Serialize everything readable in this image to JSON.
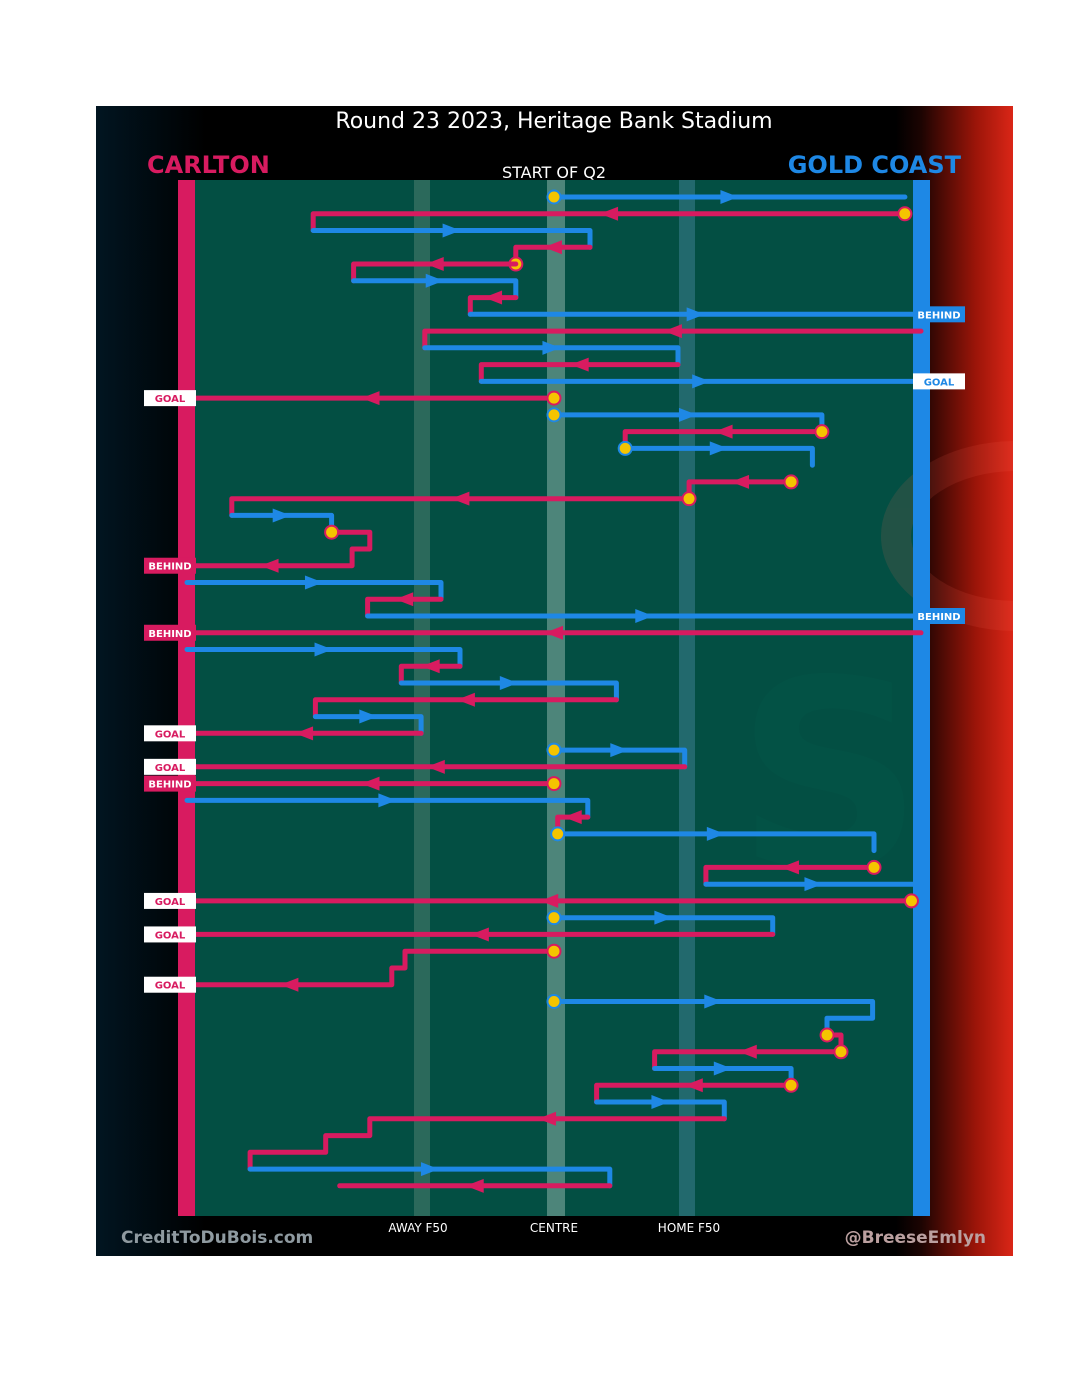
{
  "title": "Round 23 2023, Heritage Bank Stadium",
  "subtitle": "START OF Q2",
  "teams": {
    "away": {
      "name": "CARLTON",
      "color": "#d81b60"
    },
    "home": {
      "name": "GOLD COAST",
      "color": "#1e88e5"
    }
  },
  "x_axis_labels": {
    "away_f50": "AWAY F50",
    "centre": "CENTRE",
    "home_f50": "HOME F50"
  },
  "credits": {
    "left": "CreditToDuBois.com",
    "right": "@BreeseEmlyn"
  },
  "colors": {
    "field": "#034f43",
    "carlton": "#d81b60",
    "goldcoast": "#1e88e5",
    "contest_dot": "#f5c400",
    "label_bg": "#ffffff"
  },
  "chart_data": {
    "type": "line",
    "description_axes": "x = field position from Carlton goal (0) to Gold Coast goal (100); y = sequence of possession chains",
    "xlim": [
      0,
      100
    ],
    "markers": [
      {
        "name": "AWAY F50",
        "x": 30.7
      },
      {
        "name": "CENTRE",
        "x": 50
      },
      {
        "name": "HOME F50",
        "x": 68.8
      }
    ],
    "chains": [
      {
        "team": "GOLD COAST",
        "points": [
          [
            50,
            1
          ],
          [
            97.8,
            1
          ]
        ],
        "dot_start": true
      },
      {
        "team": "CARLTON",
        "points": [
          [
            97.8,
            2
          ],
          [
            17.2,
            2
          ],
          [
            17.2,
            3
          ]
        ],
        "dot_start": true
      },
      {
        "team": "GOLD COAST",
        "points": [
          [
            17.2,
            3
          ],
          [
            54.9,
            3
          ],
          [
            54.9,
            4
          ]
        ]
      },
      {
        "team": "CARLTON",
        "points": [
          [
            54.9,
            4
          ],
          [
            44.8,
            4
          ],
          [
            44.8,
            5
          ]
        ],
        "dot_mid": [
          44.8,
          5
        ]
      },
      {
        "team": "CARLTON",
        "points": [
          [
            44.8,
            5
          ],
          [
            22.7,
            5
          ],
          [
            22.7,
            6
          ]
        ]
      },
      {
        "team": "GOLD COAST",
        "points": [
          [
            22.7,
            6
          ],
          [
            44.8,
            6
          ],
          [
            44.8,
            7
          ]
        ]
      },
      {
        "team": "CARLTON",
        "points": [
          [
            44.8,
            7
          ],
          [
            38.6,
            7
          ],
          [
            38.6,
            8
          ]
        ]
      },
      {
        "team": "GOLD COAST",
        "points": [
          [
            38.6,
            8
          ],
          [
            100,
            8
          ]
        ],
        "result": "BEHIND"
      },
      {
        "team": "CARLTON",
        "points": [
          [
            100,
            9
          ],
          [
            32.4,
            9
          ],
          [
            32.4,
            10
          ]
        ]
      },
      {
        "team": "GOLD COAST",
        "points": [
          [
            32.4,
            10
          ],
          [
            66.9,
            10
          ],
          [
            66.9,
            11
          ]
        ]
      },
      {
        "team": "CARLTON",
        "points": [
          [
            66.9,
            11
          ],
          [
            40.1,
            11
          ],
          [
            40.1,
            12
          ]
        ]
      },
      {
        "team": "GOLD COAST",
        "points": [
          [
            40.1,
            12
          ],
          [
            100,
            12
          ]
        ],
        "result": "GOAL"
      },
      {
        "team": "CARLTON",
        "points": [
          [
            50,
            13
          ],
          [
            0,
            13
          ]
        ],
        "result": "GOAL",
        "dot_start": true
      },
      {
        "team": "GOLD COAST",
        "points": [
          [
            50,
            14
          ],
          [
            86.5,
            14
          ],
          [
            86.5,
            15
          ]
        ],
        "dot_start": true
      },
      {
        "team": "CARLTON",
        "points": [
          [
            86.5,
            15
          ],
          [
            59.7,
            15
          ],
          [
            59.7,
            16
          ]
        ],
        "dot_start": true
      },
      {
        "team": "GOLD COAST",
        "points": [
          [
            59.7,
            16
          ],
          [
            85.2,
            16
          ],
          [
            85.2,
            17
          ]
        ],
        "dot_start": true
      },
      {
        "team": "CARLTON",
        "points": [
          [
            82.3,
            18
          ],
          [
            68.4,
            18
          ],
          [
            68.4,
            19
          ]
        ],
        "dot_start": true
      },
      {
        "team": "CARLTON",
        "points": [
          [
            68.4,
            19
          ],
          [
            6.1,
            19
          ],
          [
            6.1,
            20
          ]
        ],
        "dot_start": true
      },
      {
        "team": "GOLD COAST",
        "points": [
          [
            6.1,
            20
          ],
          [
            19.7,
            20
          ],
          [
            19.7,
            21
          ]
        ]
      },
      {
        "team": "CARLTON",
        "points": [
          [
            19.7,
            21
          ],
          [
            24.9,
            21
          ],
          [
            24.9,
            22
          ],
          [
            22.5,
            22
          ],
          [
            22.5,
            23
          ],
          [
            0,
            23
          ]
        ],
        "result": "BEHIND",
        "dot_start": true
      },
      {
        "team": "GOLD COAST",
        "points": [
          [
            0,
            24
          ],
          [
            34.6,
            24
          ],
          [
            34.6,
            25
          ]
        ]
      },
      {
        "team": "CARLTON",
        "points": [
          [
            34.6,
            25
          ],
          [
            24.6,
            25
          ],
          [
            24.6,
            26
          ]
        ]
      },
      {
        "team": "GOLD COAST",
        "points": [
          [
            24.6,
            26
          ],
          [
            100,
            26
          ]
        ],
        "result": "BEHIND"
      },
      {
        "team": "CARLTON",
        "points": [
          [
            100,
            27
          ],
          [
            0,
            27
          ]
        ],
        "result": "BEHIND"
      },
      {
        "team": "GOLD COAST",
        "points": [
          [
            0,
            28
          ],
          [
            37.2,
            28
          ],
          [
            37.2,
            29
          ]
        ]
      },
      {
        "team": "CARLTON",
        "points": [
          [
            37.2,
            29
          ],
          [
            29.2,
            29
          ],
          [
            29.2,
            30
          ]
        ]
      },
      {
        "team": "GOLD COAST",
        "points": [
          [
            29.2,
            30
          ],
          [
            58.5,
            30
          ],
          [
            58.5,
            31
          ]
        ]
      },
      {
        "team": "CARLTON",
        "points": [
          [
            58.5,
            31
          ],
          [
            17.5,
            31
          ],
          [
            17.5,
            32
          ]
        ]
      },
      {
        "team": "GOLD COAST",
        "points": [
          [
            17.5,
            32
          ],
          [
            31.9,
            32
          ],
          [
            31.9,
            33
          ]
        ]
      },
      {
        "team": "CARLTON",
        "points": [
          [
            31.9,
            33
          ],
          [
            0,
            33
          ]
        ],
        "result": "GOAL"
      },
      {
        "team": "GOLD COAST",
        "points": [
          [
            50,
            34
          ],
          [
            67.8,
            34
          ],
          [
            67.8,
            35
          ]
        ],
        "dot_start": true
      },
      {
        "team": "CARLTON",
        "points": [
          [
            67.8,
            35
          ],
          [
            0,
            35
          ]
        ],
        "result": "GOAL"
      },
      {
        "team": "CARLTON",
        "points": [
          [
            50,
            36
          ],
          [
            0,
            36
          ]
        ],
        "result": "BEHIND",
        "dot_start": true
      },
      {
        "team": "GOLD COAST",
        "points": [
          [
            0,
            37
          ],
          [
            54.6,
            37
          ],
          [
            54.6,
            38
          ]
        ]
      },
      {
        "team": "CARLTON",
        "points": [
          [
            54.6,
            38
          ],
          [
            50.5,
            38
          ],
          [
            50.5,
            39
          ]
        ]
      },
      {
        "team": "GOLD COAST",
        "points": [
          [
            50.5,
            39
          ],
          [
            93.6,
            39
          ],
          [
            93.6,
            40
          ]
        ],
        "dot_start": true
      },
      {
        "team": "CARLTON",
        "points": [
          [
            93.6,
            41
          ],
          [
            70.7,
            41
          ],
          [
            70.7,
            42
          ]
        ],
        "dot_start": true
      },
      {
        "team": "GOLD COAST",
        "points": [
          [
            70.7,
            42
          ],
          [
            100,
            42
          ]
        ]
      },
      {
        "team": "CARLTON",
        "points": [
          [
            98.7,
            43
          ],
          [
            0,
            43
          ]
        ],
        "result": "GOAL",
        "dot_start": true
      },
      {
        "team": "GOLD COAST",
        "points": [
          [
            50,
            44
          ],
          [
            79.8,
            44
          ],
          [
            79.8,
            45
          ]
        ],
        "dot_start": true
      },
      {
        "team": "CARLTON",
        "points": [
          [
            79.8,
            45
          ],
          [
            0,
            45
          ]
        ],
        "result": "GOAL"
      },
      {
        "team": "CARLTON",
        "points": [
          [
            50,
            46
          ],
          [
            29.7,
            46
          ],
          [
            29.7,
            47
          ],
          [
            27.9,
            47
          ],
          [
            27.9,
            48
          ],
          [
            0,
            48
          ]
        ],
        "result": "GOAL",
        "dot_start": true
      },
      {
        "team": "GOLD COAST",
        "points": [
          [
            50,
            49
          ],
          [
            93.4,
            49
          ],
          [
            93.4,
            50
          ],
          [
            87.2,
            50
          ],
          [
            87.2,
            51
          ]
        ],
        "dot_start": true
      },
      {
        "team": "CARLTON",
        "points": [
          [
            87.2,
            51
          ],
          [
            89.1,
            51
          ],
          [
            89.1,
            52
          ]
        ],
        "dot_start": true
      },
      {
        "team": "CARLTON",
        "points": [
          [
            89.1,
            52
          ],
          [
            63.7,
            52
          ],
          [
            63.7,
            53
          ]
        ],
        "dot_start": true
      },
      {
        "team": "GOLD COAST",
        "points": [
          [
            63.7,
            53
          ],
          [
            82.3,
            53
          ],
          [
            82.3,
            54
          ]
        ]
      },
      {
        "team": "CARLTON",
        "points": [
          [
            82.3,
            54
          ],
          [
            55.8,
            54
          ],
          [
            55.8,
            55
          ]
        ],
        "dot_start": true
      },
      {
        "team": "GOLD COAST",
        "points": [
          [
            55.8,
            55
          ],
          [
            73.2,
            55
          ],
          [
            73.2,
            56
          ]
        ]
      },
      {
        "team": "CARLTON",
        "points": [
          [
            73.2,
            56
          ],
          [
            24.9,
            56
          ],
          [
            24.9,
            57
          ],
          [
            18.9,
            57
          ],
          [
            18.9,
            58
          ],
          [
            8.6,
            58
          ],
          [
            8.6,
            59
          ]
        ]
      },
      {
        "team": "GOLD COAST",
        "points": [
          [
            8.6,
            59
          ],
          [
            57.6,
            59
          ],
          [
            57.6,
            60
          ]
        ]
      },
      {
        "team": "CARLTON",
        "points": [
          [
            57.6,
            60
          ],
          [
            20.8,
            60
          ]
        ]
      }
    ]
  }
}
